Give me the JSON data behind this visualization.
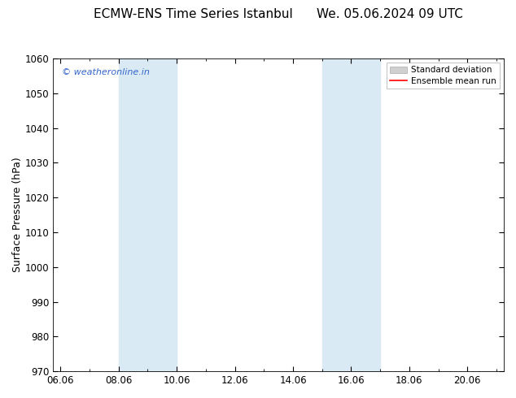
{
  "title": "ECMW-ENS Time Series Istanbul",
  "title2": "We. 05.06.2024 09 UTC",
  "ylabel": "Surface Pressure (hPa)",
  "ylim": [
    970,
    1060
  ],
  "yticks": [
    970,
    980,
    990,
    1000,
    1010,
    1020,
    1030,
    1040,
    1050,
    1060
  ],
  "xlim_start": 5.75,
  "xlim_end": 21.25,
  "xtick_labels": [
    "06.06",
    "08.06",
    "10.06",
    "12.06",
    "14.06",
    "16.06",
    "18.06",
    "20.06"
  ],
  "xtick_positions": [
    6.0,
    8.0,
    10.0,
    12.0,
    14.0,
    16.0,
    18.0,
    20.0
  ],
  "shaded_bands": [
    {
      "x_start": 8.0,
      "x_end": 10.0,
      "color": "#daeaf5"
    },
    {
      "x_start": 15.0,
      "x_end": 17.0,
      "color": "#daeaf5"
    }
  ],
  "watermark_text": "© weatheronline.in",
  "watermark_color": "#3366cc",
  "legend_std_dev_color": "#d0d0d0",
  "legend_mean_run_color": "#ff0000",
  "background_color": "#ffffff",
  "title_fontsize": 11,
  "axis_label_fontsize": 9,
  "tick_fontsize": 8.5
}
